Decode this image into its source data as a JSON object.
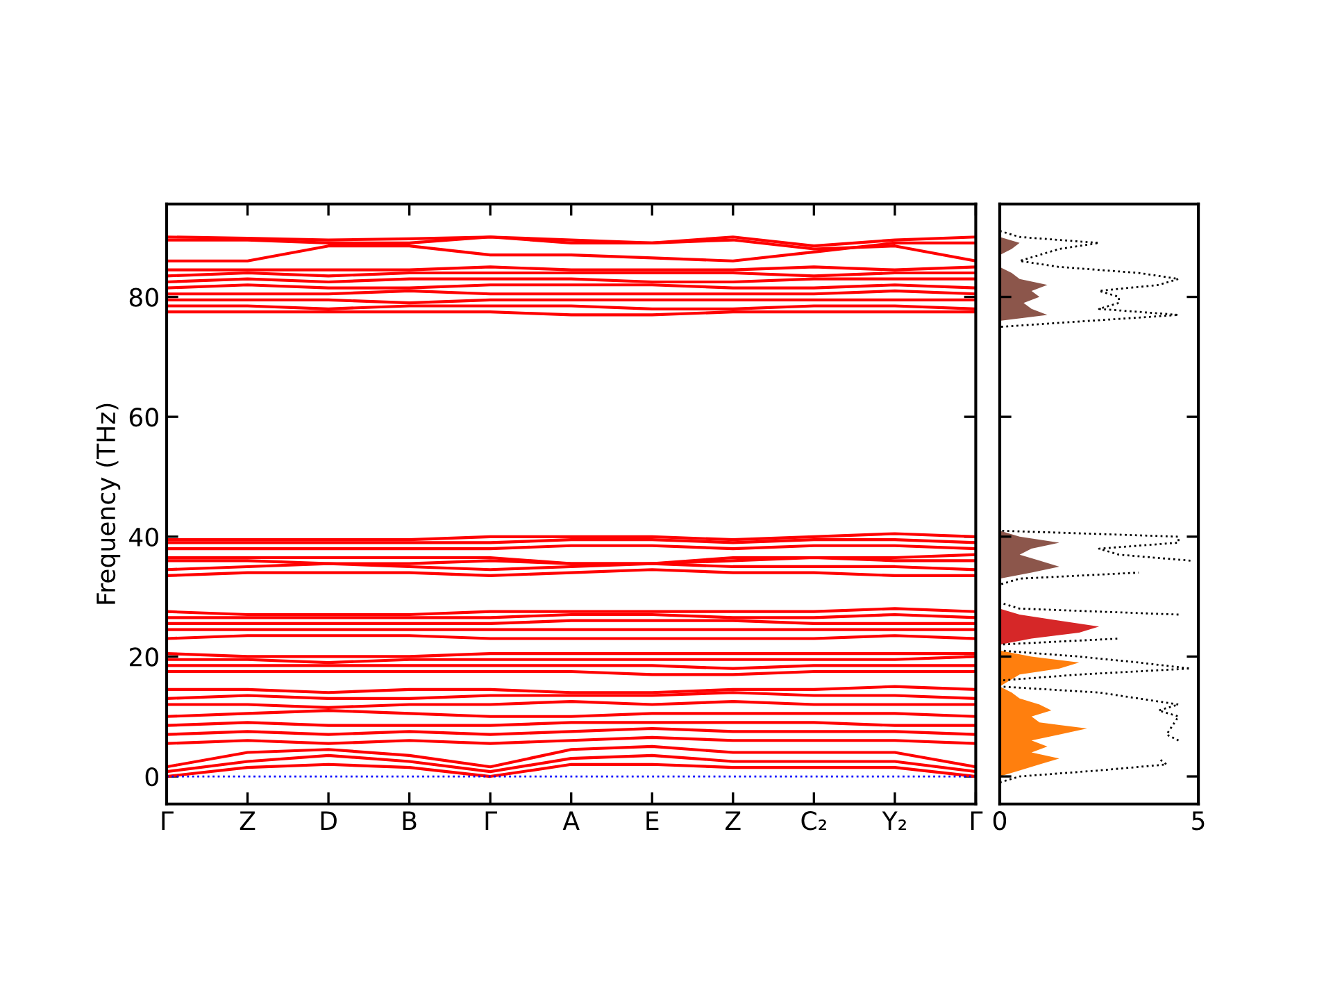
{
  "chart_data": [
    {
      "type": "line",
      "ylabel": "Frequency (THz)",
      "categories": [
        "Γ",
        "Z",
        "D",
        "B",
        "Γ",
        "A",
        "E",
        "Z",
        "C₂",
        "Y₂",
        "Γ"
      ],
      "ylim": [
        -4.6,
        95.5
      ],
      "yticks": [
        0,
        20,
        40,
        60,
        80
      ],
      "grid": false,
      "ref_lines": [
        {
          "axis": "y",
          "value": 0,
          "color": "#0000ff",
          "line_style": "dotted"
        }
      ],
      "series": [
        {
          "color": "#ff0000",
          "values": [
            0,
            1.5,
            2,
            1.5,
            0,
            2,
            2,
            1.5,
            1.5,
            1.5,
            0
          ]
        },
        {
          "color": "#ff0000",
          "values": [
            0.8,
            2.5,
            3.5,
            2.5,
            0.8,
            3,
            3.5,
            2.5,
            2.5,
            2.5,
            0.8
          ]
        },
        {
          "color": "#ff0000",
          "values": [
            1.6,
            4,
            4.5,
            3.5,
            1.6,
            4.5,
            5,
            4,
            4,
            4,
            1.6
          ]
        },
        {
          "color": "#ff0000",
          "values": [
            5.5,
            6,
            5.5,
            6,
            5.5,
            6,
            6.5,
            6,
            6,
            6,
            5.5
          ]
        },
        {
          "color": "#ff0000",
          "values": [
            7,
            7.5,
            7,
            7.5,
            7,
            7.5,
            8,
            7.5,
            7.5,
            7.5,
            7
          ]
        },
        {
          "color": "#ff0000",
          "values": [
            8.5,
            9,
            8.5,
            8.5,
            8.5,
            9,
            9,
            9,
            9,
            8.5,
            8.5
          ]
        },
        {
          "color": "#ff0000",
          "values": [
            10,
            10.5,
            11,
            10.5,
            10,
            10,
            10.5,
            10.5,
            10.5,
            10.5,
            10
          ]
        },
        {
          "color": "#ff0000",
          "values": [
            12,
            12,
            11.5,
            12,
            12,
            12.5,
            12,
            12.5,
            12,
            12,
            12
          ]
        },
        {
          "color": "#ff0000",
          "values": [
            13,
            13.5,
            13,
            13,
            13.5,
            13.5,
            13.5,
            14,
            13.5,
            13.5,
            13
          ]
        },
        {
          "color": "#ff0000",
          "values": [
            14.5,
            14.5,
            14,
            14.5,
            14.5,
            14,
            14,
            14.5,
            14.5,
            15,
            14.5
          ]
        },
        {
          "color": "#ff0000",
          "values": [
            17.5,
            17.5,
            17.5,
            17.5,
            17.5,
            17.5,
            17,
            17,
            17.5,
            17.5,
            17.5
          ]
        },
        {
          "color": "#ff0000",
          "values": [
            18.5,
            18.5,
            18.5,
            18.5,
            18.5,
            18.5,
            18.5,
            18,
            18.5,
            18.5,
            18.5
          ]
        },
        {
          "color": "#ff0000",
          "values": [
            19.5,
            19.5,
            19,
            19.5,
            19.5,
            19.5,
            19.5,
            19.5,
            19.5,
            19.5,
            20
          ]
        },
        {
          "color": "#ff0000",
          "values": [
            20.5,
            20,
            20,
            20,
            20.5,
            20.5,
            20.5,
            20.5,
            20.5,
            20.5,
            20.5
          ]
        },
        {
          "color": "#ff0000",
          "values": [
            23,
            23.5,
            23.5,
            23.5,
            23,
            23,
            23,
            23,
            23,
            23.5,
            23
          ]
        },
        {
          "color": "#ff0000",
          "values": [
            24.5,
            24.5,
            24.5,
            24.5,
            24.5,
            24.5,
            24.5,
            24.5,
            24.5,
            24.5,
            24.5
          ]
        },
        {
          "color": "#ff0000",
          "values": [
            25.5,
            25.5,
            25.5,
            25.5,
            25.5,
            26,
            26,
            26,
            25.5,
            25.5,
            25.5
          ]
        },
        {
          "color": "#ff0000",
          "values": [
            26.5,
            26.5,
            26.5,
            26.5,
            26.5,
            27,
            27,
            26.5,
            26.5,
            27,
            26.5
          ]
        },
        {
          "color": "#ff0000",
          "values": [
            27.5,
            27,
            27,
            27,
            27.5,
            27.5,
            27.5,
            27.5,
            27.5,
            28,
            27.5
          ]
        },
        {
          "color": "#ff0000",
          "values": [
            33.5,
            34,
            34,
            34,
            33.5,
            34,
            34.5,
            34,
            34,
            33.5,
            33.5
          ]
        },
        {
          "color": "#ff0000",
          "values": [
            34.5,
            35,
            35.5,
            35,
            34.5,
            35,
            35.5,
            35,
            35,
            35,
            34.5
          ]
        },
        {
          "color": "#ff0000",
          "values": [
            36,
            36,
            35.5,
            35.5,
            36,
            35.5,
            35.5,
            36,
            36.5,
            36,
            36
          ]
        },
        {
          "color": "#ff0000",
          "values": [
            36.5,
            36.5,
            36.5,
            36.5,
            36.5,
            35.5,
            35.5,
            36.5,
            36.5,
            36.5,
            37
          ]
        },
        {
          "color": "#ff0000",
          "values": [
            38,
            38,
            38,
            38,
            38,
            38.5,
            38.5,
            38,
            38.5,
            38.5,
            38
          ]
        },
        {
          "color": "#ff0000",
          "values": [
            39,
            39,
            39,
            39,
            39,
            39.5,
            39.5,
            39,
            39.5,
            39.5,
            39
          ]
        },
        {
          "color": "#ff0000",
          "values": [
            39.5,
            39.5,
            39.5,
            39.5,
            40,
            40,
            40,
            39.5,
            40,
            40.5,
            40
          ]
        },
        {
          "color": "#ff0000",
          "values": [
            77.5,
            77.5,
            77.5,
            77.5,
            77.5,
            77,
            77,
            77.5,
            77.5,
            77.5,
            77.5
          ]
        },
        {
          "color": "#ff0000",
          "values": [
            78.5,
            78.5,
            78,
            78.5,
            78.5,
            78.5,
            78,
            78,
            78.5,
            78.5,
            78
          ]
        },
        {
          "color": "#ff0000",
          "values": [
            79.5,
            79.5,
            79.5,
            79,
            79.5,
            79.5,
            79.5,
            79.5,
            79.5,
            79.5,
            79.5
          ]
        },
        {
          "color": "#ff0000",
          "values": [
            80.5,
            80.5,
            80.5,
            81,
            80.5,
            80.5,
            80.5,
            80.5,
            80.5,
            81,
            80.5
          ]
        },
        {
          "color": "#ff0000",
          "values": [
            81.5,
            82,
            81.5,
            81.5,
            82,
            82,
            82,
            81.5,
            81.5,
            82,
            81.5
          ]
        },
        {
          "color": "#ff0000",
          "values": [
            82.5,
            83,
            82.5,
            83,
            83,
            83,
            82.5,
            82.5,
            83,
            83,
            83
          ]
        },
        {
          "color": "#ff0000",
          "values": [
            83.5,
            84,
            83.5,
            84,
            84,
            84,
            84,
            84,
            83.5,
            84,
            84
          ]
        },
        {
          "color": "#ff0000",
          "values": [
            84.5,
            84.5,
            84.5,
            84.5,
            85,
            84.5,
            84.5,
            84.5,
            85,
            84.5,
            85
          ]
        },
        {
          "color": "#ff0000",
          "values": [
            86,
            86,
            88.5,
            88.5,
            87,
            87,
            86.5,
            86,
            87.5,
            89,
            89
          ]
        },
        {
          "color": "#ff0000",
          "values": [
            89.5,
            89.5,
            89,
            89,
            90,
            89.5,
            89,
            89.5,
            88,
            88.5,
            86
          ]
        },
        {
          "color": "#ff0000",
          "values": [
            90,
            89.8,
            89.5,
            89.7,
            90,
            89,
            89,
            90,
            88.5,
            89.5,
            90
          ]
        }
      ]
    },
    {
      "type": "area",
      "orientation": "horizontal",
      "xlim": [
        0,
        5
      ],
      "xticks": [
        0,
        5
      ],
      "ylim": [
        -4.6,
        95.5
      ],
      "yticks": [
        0,
        20,
        40,
        60,
        80
      ],
      "tick_labels": "x",
      "grid": false,
      "series": [
        {
          "color": "#ff7f0e",
          "x": [
            0,
            1,
            2,
            3,
            4,
            5,
            6,
            7,
            8,
            9,
            10,
            11,
            12,
            13,
            14,
            15,
            17,
            18,
            19,
            20,
            21
          ],
          "values": [
            0,
            0.5,
            1,
            1.5,
            0.8,
            1.2,
            0.8,
            1.5,
            2.2,
            1,
            0.8,
            1.3,
            1,
            0.5,
            0.3,
            0,
            0.5,
            1.5,
            2,
            0.8,
            0
          ]
        },
        {
          "color": "#d62728",
          "x": [
            22,
            23,
            24,
            25,
            26,
            27,
            28
          ],
          "values": [
            0,
            0.8,
            2,
            2.5,
            1.5,
            0.5,
            0
          ]
        },
        {
          "color": "#8c564b",
          "x": [
            33,
            34,
            35,
            36,
            37,
            38,
            39,
            40,
            41,
            76,
            77,
            78,
            79,
            80,
            81,
            82,
            83,
            84,
            85,
            87,
            88,
            89,
            90
          ],
          "values": [
            0,
            0.8,
            1.5,
            1,
            0.5,
            0.8,
            1.5,
            0.5,
            0,
            0,
            1.2,
            0.8,
            0.6,
            1,
            0.8,
            1.2,
            0.5,
            0.3,
            0,
            0,
            0.3,
            0.5,
            0
          ]
        },
        {
          "type": "line",
          "line_style": "dotted",
          "color": "#000000",
          "x": [
            -1,
            0,
            1,
            2,
            3,
            4,
            6,
            7,
            10,
            11,
            12,
            13,
            14,
            15,
            16,
            17,
            18,
            19,
            20,
            21,
            22,
            23,
            24,
            27,
            28,
            29,
            32,
            33,
            34,
            35,
            36,
            37,
            38,
            39,
            40,
            41,
            75,
            77,
            78,
            79,
            80,
            81,
            82,
            83,
            84,
            85,
            86,
            87,
            88,
            89,
            90,
            91
          ],
          "values": [
            0,
            0.5,
            2.5,
            4.2,
            4,
            null,
            4.5,
            4.2,
            4.5,
            4,
            4.5,
            3.5,
            2.5,
            0,
            0,
            2,
            4.8,
            3.5,
            2,
            0,
            0,
            3,
            null,
            4.5,
            0.5,
            0,
            0,
            0.5,
            3.5,
            null,
            4.8,
            3,
            2.5,
            4.5,
            4.5,
            0,
            0,
            4.5,
            2.5,
            3,
            3,
            2.5,
            4,
            4.5,
            3.5,
            1.5,
            0.5,
            1,
            1.5,
            2.5,
            0.5,
            0
          ]
        }
      ]
    }
  ]
}
